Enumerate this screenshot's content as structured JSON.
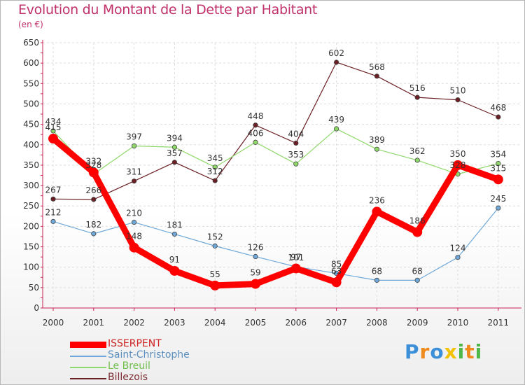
{
  "chart_data": {
    "type": "line",
    "title": "Evolution du Montant de la Dette par Habitant",
    "subtitle": "(en €)",
    "x": [
      "2000",
      "2001",
      "2002",
      "2003",
      "2004",
      "2005",
      "2006",
      "2007",
      "2008",
      "2009",
      "2010",
      "2011"
    ],
    "ylim": [
      0,
      650
    ],
    "yticks": [
      "0",
      "50",
      "100",
      "150",
      "200",
      "250",
      "300",
      "350",
      "400",
      "450",
      "500",
      "550",
      "600",
      "650"
    ],
    "grid": true,
    "legend_position": "bottom-left",
    "series": [
      {
        "name": "Billezois",
        "color": "#6b1f24",
        "values": [
          267,
          266,
          311,
          357,
          312,
          448,
          404,
          602,
          568,
          516,
          510,
          468
        ]
      },
      {
        "name": "Le Breuil",
        "color": "#8fd86a",
        "values": [
          434,
          328,
          397,
          394,
          345,
          406,
          353,
          439,
          389,
          362,
          328,
          354
        ]
      },
      {
        "name": "Saint-Christophe",
        "color": "#6fa8d8",
        "values": [
          212,
          182,
          210,
          181,
          152,
          126,
          101,
          85,
          68,
          68,
          124,
          245
        ]
      },
      {
        "name": "ISSERPENT",
        "color": "#ff0000",
        "values": [
          415,
          332,
          148,
          91,
          55,
          59,
          97,
          63,
          236,
          186,
          350,
          315
        ]
      }
    ]
  },
  "legend": {
    "items": [
      {
        "name": "ISSERPENT",
        "color": "#ff0000",
        "text_color": "#cc2222"
      },
      {
        "name": "Saint-Christophe",
        "color": "#6fa8d8",
        "text_color": "#5a8fc0"
      },
      {
        "name": "Le Breuil",
        "color": "#8fd86a",
        "text_color": "#6fbf4a"
      },
      {
        "name": "Billezois",
        "color": "#6b1f24",
        "text_color": "#7a2a30"
      }
    ]
  },
  "brand": {
    "letters": [
      {
        "ch": "P",
        "color": "#3a8fd8"
      },
      {
        "ch": "r",
        "color": "#f08a1c"
      },
      {
        "ch": "o",
        "color": "#3a8fd8"
      },
      {
        "ch": "x",
        "color": "#f2c200"
      },
      {
        "ch": "i",
        "color": "#4db848"
      },
      {
        "ch": "t",
        "color": "#f08a1c"
      },
      {
        "ch": "i",
        "color": "#4db848"
      }
    ]
  }
}
